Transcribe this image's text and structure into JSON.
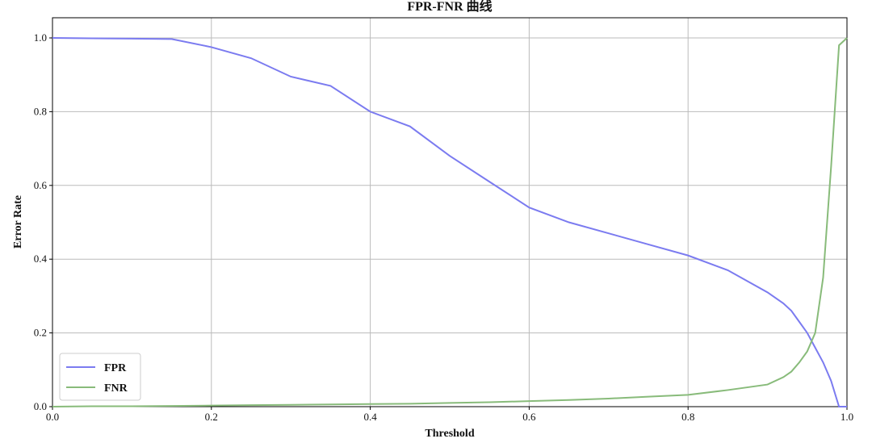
{
  "chart_data": {
    "type": "line",
    "title": "FPR-FNR 曲线",
    "x_label": "Threshold",
    "y_label": "Error Rate",
    "x": [
      0,
      0.05,
      0.1,
      0.15,
      0.2,
      0.25,
      0.3,
      0.35,
      0.4,
      0.45,
      0.5,
      0.55,
      0.6,
      0.65,
      0.7,
      0.75,
      0.8,
      0.85,
      0.9,
      0.92,
      0.93,
      0.94,
      0.95,
      0.96,
      0.97,
      0.98,
      0.99,
      1.0
    ],
    "series": [
      {
        "name": "FPR",
        "color": "#7b7bf0",
        "values": [
          1.0,
          0.999,
          0.998,
          0.997,
          0.975,
          0.945,
          0.895,
          0.87,
          0.8,
          0.76,
          0.68,
          0.61,
          0.54,
          0.5,
          0.47,
          0.44,
          0.41,
          0.37,
          0.31,
          0.28,
          0.26,
          0.23,
          0.2,
          0.16,
          0.12,
          0.07,
          0.0,
          0.0
        ]
      },
      {
        "name": "FNR",
        "color": "#88bb7a",
        "values": [
          0,
          0.001,
          0.001,
          0.002,
          0.003,
          0.004,
          0.005,
          0.006,
          0.007,
          0.008,
          0.01,
          0.012,
          0.015,
          0.018,
          0.022,
          0.027,
          0.032,
          0.045,
          0.06,
          0.08,
          0.095,
          0.12,
          0.15,
          0.2,
          0.35,
          0.65,
          0.98,
          1.0
        ]
      }
    ],
    "xlim": [
      0,
      1
    ],
    "ylim": [
      0,
      1
    ],
    "xticks": [
      {
        "value": 0,
        "label": "0.0"
      },
      0.2,
      0.4,
      0.6,
      0.8,
      {
        "value": 1,
        "label": "1.0"
      }
    ],
    "yticks": [
      {
        "value": 0,
        "label": "0.0"
      },
      0.2,
      0.4,
      0.6,
      0.8,
      {
        "value": 1,
        "label": "1.0"
      }
    ],
    "grid": true,
    "legend": "lower left"
  }
}
